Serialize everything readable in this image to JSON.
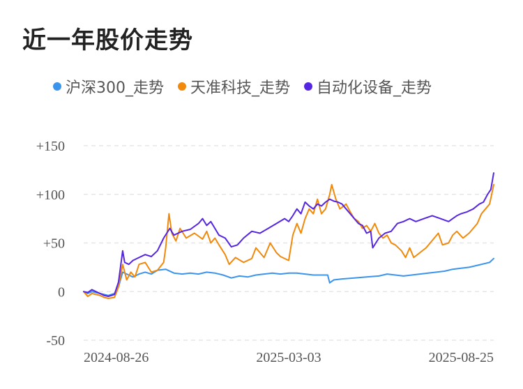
{
  "title": "近一年股价走势",
  "chart_data": {
    "type": "line",
    "title": "近一年股价走势",
    "y_unit": "%",
    "ylim": [
      -50,
      150
    ],
    "yticks": [
      150,
      100,
      50,
      0,
      -50
    ],
    "ytick_labels": [
      "+150",
      "+100",
      "+50",
      "0",
      "-50"
    ],
    "x_range": [
      "2024-08-26",
      "2025-08-25"
    ],
    "x_ticks": [
      "2024-08-26",
      "2025-03-03",
      "2025-08-25"
    ],
    "x_tick_positions": [
      0.09,
      0.5,
      1.0
    ],
    "grid": true,
    "legend_position": "top",
    "series": [
      {
        "name": "沪深300_走势",
        "color": "#3b94ec",
        "points": [
          [
            0,
            0
          ],
          [
            0.01,
            -2
          ],
          [
            0.02,
            0
          ],
          [
            0.03,
            -1
          ],
          [
            0.04,
            -2
          ],
          [
            0.05,
            -3
          ],
          [
            0.06,
            -4
          ],
          [
            0.075,
            -2
          ],
          [
            0.085,
            5
          ],
          [
            0.095,
            20
          ],
          [
            0.105,
            18
          ],
          [
            0.12,
            15
          ],
          [
            0.135,
            18
          ],
          [
            0.15,
            20
          ],
          [
            0.165,
            18
          ],
          [
            0.18,
            22
          ],
          [
            0.2,
            23
          ],
          [
            0.22,
            19
          ],
          [
            0.24,
            18
          ],
          [
            0.26,
            19
          ],
          [
            0.28,
            18
          ],
          [
            0.3,
            20
          ],
          [
            0.32,
            19
          ],
          [
            0.34,
            17
          ],
          [
            0.36,
            14
          ],
          [
            0.38,
            16
          ],
          [
            0.4,
            15
          ],
          [
            0.42,
            17
          ],
          [
            0.44,
            18
          ],
          [
            0.46,
            19
          ],
          [
            0.48,
            18
          ],
          [
            0.5,
            19
          ],
          [
            0.52,
            19
          ],
          [
            0.54,
            18
          ],
          [
            0.56,
            17
          ],
          [
            0.58,
            17
          ],
          [
            0.595,
            17
          ],
          [
            0.6,
            9
          ],
          [
            0.61,
            12
          ],
          [
            0.63,
            13
          ],
          [
            0.66,
            14
          ],
          [
            0.69,
            15
          ],
          [
            0.72,
            16
          ],
          [
            0.74,
            18
          ],
          [
            0.76,
            17
          ],
          [
            0.78,
            16
          ],
          [
            0.8,
            17
          ],
          [
            0.82,
            18
          ],
          [
            0.84,
            19
          ],
          [
            0.86,
            20
          ],
          [
            0.88,
            21
          ],
          [
            0.9,
            23
          ],
          [
            0.92,
            24
          ],
          [
            0.94,
            25
          ],
          [
            0.96,
            27
          ],
          [
            0.98,
            29
          ],
          [
            0.99,
            30
          ],
          [
            1.0,
            34
          ]
        ]
      },
      {
        "name": "天准科技_走势",
        "color": "#f1890b",
        "points": [
          [
            0,
            0
          ],
          [
            0.01,
            -5
          ],
          [
            0.02,
            -2
          ],
          [
            0.03,
            -3
          ],
          [
            0.04,
            -4
          ],
          [
            0.05,
            -6
          ],
          [
            0.06,
            -7
          ],
          [
            0.075,
            -6
          ],
          [
            0.085,
            5
          ],
          [
            0.095,
            28
          ],
          [
            0.105,
            12
          ],
          [
            0.115,
            20
          ],
          [
            0.125,
            15
          ],
          [
            0.135,
            28
          ],
          [
            0.15,
            30
          ],
          [
            0.165,
            20
          ],
          [
            0.18,
            22
          ],
          [
            0.195,
            30
          ],
          [
            0.2,
            45
          ],
          [
            0.208,
            80
          ],
          [
            0.215,
            60
          ],
          [
            0.225,
            52
          ],
          [
            0.235,
            65
          ],
          [
            0.25,
            55
          ],
          [
            0.27,
            60
          ],
          [
            0.29,
            54
          ],
          [
            0.3,
            62
          ],
          [
            0.31,
            50
          ],
          [
            0.32,
            55
          ],
          [
            0.33,
            48
          ],
          [
            0.345,
            38
          ],
          [
            0.355,
            28
          ],
          [
            0.37,
            35
          ],
          [
            0.39,
            30
          ],
          [
            0.41,
            34
          ],
          [
            0.42,
            45
          ],
          [
            0.43,
            40
          ],
          [
            0.44,
            35
          ],
          [
            0.455,
            50
          ],
          [
            0.47,
            40
          ],
          [
            0.48,
            36
          ],
          [
            0.5,
            32
          ],
          [
            0.51,
            58
          ],
          [
            0.52,
            70
          ],
          [
            0.53,
            60
          ],
          [
            0.54,
            75
          ],
          [
            0.55,
            85
          ],
          [
            0.56,
            80
          ],
          [
            0.57,
            95
          ],
          [
            0.58,
            80
          ],
          [
            0.59,
            85
          ],
          [
            0.6,
            100
          ],
          [
            0.605,
            110
          ],
          [
            0.615,
            95
          ],
          [
            0.625,
            85
          ],
          [
            0.64,
            90
          ],
          [
            0.65,
            82
          ],
          [
            0.66,
            75
          ],
          [
            0.67,
            72
          ],
          [
            0.68,
            65
          ],
          [
            0.69,
            68
          ],
          [
            0.7,
            62
          ],
          [
            0.71,
            70
          ],
          [
            0.72,
            60
          ],
          [
            0.73,
            55
          ],
          [
            0.74,
            58
          ],
          [
            0.75,
            50
          ],
          [
            0.76,
            48
          ],
          [
            0.775,
            42
          ],
          [
            0.785,
            35
          ],
          [
            0.795,
            45
          ],
          [
            0.805,
            35
          ],
          [
            0.82,
            40
          ],
          [
            0.835,
            45
          ],
          [
            0.845,
            50
          ],
          [
            0.855,
            55
          ],
          [
            0.865,
            60
          ],
          [
            0.875,
            48
          ],
          [
            0.89,
            50
          ],
          [
            0.9,
            58
          ],
          [
            0.91,
            62
          ],
          [
            0.925,
            55
          ],
          [
            0.94,
            60
          ],
          [
            0.96,
            70
          ],
          [
            0.97,
            80
          ],
          [
            0.98,
            85
          ],
          [
            0.99,
            90
          ],
          [
            0.995,
            100
          ],
          [
            1.0,
            110
          ]
        ]
      },
      {
        "name": "自动化设备_走势",
        "color": "#5425e3",
        "points": [
          [
            0,
            0
          ],
          [
            0.01,
            -1
          ],
          [
            0.02,
            2
          ],
          [
            0.03,
            0
          ],
          [
            0.04,
            -2
          ],
          [
            0.05,
            -4
          ],
          [
            0.06,
            -5
          ],
          [
            0.075,
            -3
          ],
          [
            0.085,
            10
          ],
          [
            0.095,
            42
          ],
          [
            0.1,
            30
          ],
          [
            0.11,
            28
          ],
          [
            0.12,
            32
          ],
          [
            0.135,
            35
          ],
          [
            0.15,
            38
          ],
          [
            0.165,
            36
          ],
          [
            0.18,
            42
          ],
          [
            0.195,
            55
          ],
          [
            0.21,
            65
          ],
          [
            0.22,
            58
          ],
          [
            0.24,
            62
          ],
          [
            0.26,
            64
          ],
          [
            0.28,
            70
          ],
          [
            0.29,
            75
          ],
          [
            0.3,
            68
          ],
          [
            0.31,
            72
          ],
          [
            0.32,
            65
          ],
          [
            0.33,
            58
          ],
          [
            0.345,
            55
          ],
          [
            0.36,
            46
          ],
          [
            0.375,
            48
          ],
          [
            0.39,
            55
          ],
          [
            0.41,
            62
          ],
          [
            0.43,
            60
          ],
          [
            0.45,
            65
          ],
          [
            0.47,
            70
          ],
          [
            0.49,
            75
          ],
          [
            0.5,
            72
          ],
          [
            0.51,
            78
          ],
          [
            0.52,
            85
          ],
          [
            0.53,
            80
          ],
          [
            0.54,
            92
          ],
          [
            0.55,
            88
          ],
          [
            0.56,
            85
          ],
          [
            0.57,
            90
          ],
          [
            0.58,
            88
          ],
          [
            0.59,
            92
          ],
          [
            0.6,
            95
          ],
          [
            0.61,
            93
          ],
          [
            0.62,
            92
          ],
          [
            0.63,
            90
          ],
          [
            0.64,
            85
          ],
          [
            0.65,
            80
          ],
          [
            0.66,
            75
          ],
          [
            0.67,
            70
          ],
          [
            0.68,
            68
          ],
          [
            0.69,
            60
          ],
          [
            0.7,
            62
          ],
          [
            0.705,
            45
          ],
          [
            0.72,
            55
          ],
          [
            0.735,
            60
          ],
          [
            0.75,
            62
          ],
          [
            0.765,
            70
          ],
          [
            0.78,
            72
          ],
          [
            0.795,
            75
          ],
          [
            0.81,
            72
          ],
          [
            0.83,
            75
          ],
          [
            0.85,
            78
          ],
          [
            0.87,
            75
          ],
          [
            0.89,
            72
          ],
          [
            0.9,
            75
          ],
          [
            0.91,
            78
          ],
          [
            0.92,
            80
          ],
          [
            0.935,
            82
          ],
          [
            0.95,
            85
          ],
          [
            0.965,
            90
          ],
          [
            0.975,
            92
          ],
          [
            0.985,
            100
          ],
          [
            0.993,
            105
          ],
          [
            1.0,
            122
          ]
        ]
      }
    ]
  }
}
